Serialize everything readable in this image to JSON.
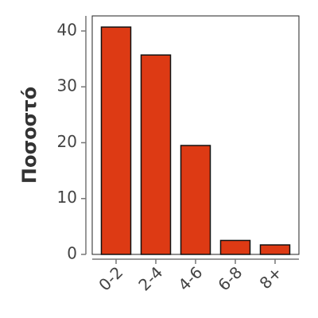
{
  "chart_data": {
    "type": "bar",
    "y_label": "Ποσοστό",
    "categories": [
      "0-2",
      "2-4",
      "4-6",
      "6-8",
      "8+"
    ],
    "values": [
      40.7,
      35.7,
      19.5,
      2.5,
      1.7
    ],
    "color": "#dd3a14",
    "ylim": [
      0,
      42.7
    ],
    "yticks": [
      0,
      10,
      20,
      30,
      40
    ]
  }
}
